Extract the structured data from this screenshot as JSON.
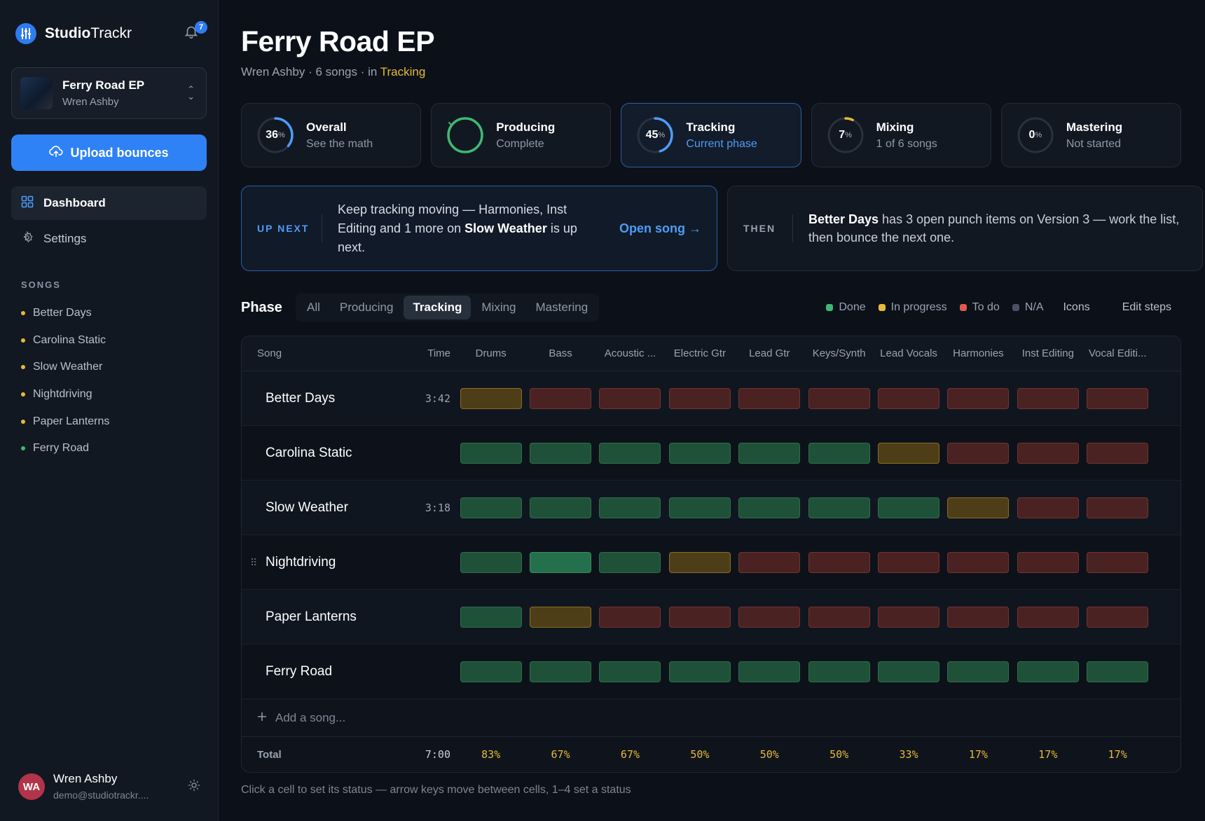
{
  "brand": {
    "bold": "Studio",
    "light": "Trackr",
    "notifications": "7"
  },
  "project": {
    "title": "Ferry Road EP",
    "artist": "Wren Ashby"
  },
  "sidebar": {
    "upload_label": "Upload bounces",
    "nav": [
      {
        "label": "Dashboard",
        "icon": "grid-icon",
        "active": true
      },
      {
        "label": "Settings",
        "icon": "gear-icon",
        "active": false
      }
    ],
    "songs_heading": "SONGS",
    "songs": [
      {
        "label": "Better Days",
        "dot": "#e8b93a"
      },
      {
        "label": "Carolina Static",
        "dot": "#e8b93a"
      },
      {
        "label": "Slow Weather",
        "dot": "#e8b93a"
      },
      {
        "label": "Nightdriving",
        "dot": "#e8b93a"
      },
      {
        "label": "Paper Lanterns",
        "dot": "#e8b93a"
      },
      {
        "label": "Ferry Road",
        "dot": "#3fb872"
      }
    ],
    "user": {
      "initials": "WA",
      "name": "Wren Ashby",
      "email": "demo@studiotrackr...."
    }
  },
  "header": {
    "title": "Ferry Road EP",
    "subtitle_prefix": "Wren Ashby · 6 songs · in ",
    "subtitle_phase": "Tracking"
  },
  "stats": [
    {
      "percent": 36,
      "label": "36",
      "unit": "%",
      "title": "Overall",
      "sub": "See the math",
      "color": "#4d9cf8",
      "check": false
    },
    {
      "percent": 100,
      "label": "",
      "unit": "",
      "title": "Producing",
      "sub": "Complete",
      "color": "#3fb872",
      "check": true
    },
    {
      "percent": 45,
      "label": "45",
      "unit": "%",
      "title": "Tracking",
      "sub": "Current phase",
      "color": "#4d9cf8",
      "check": false
    },
    {
      "percent": 7,
      "label": "7",
      "unit": "%",
      "title": "Mixing",
      "sub": "1 of 6 songs",
      "color": "#e8b93a",
      "check": false
    },
    {
      "percent": 0,
      "label": "0",
      "unit": "%",
      "title": "Mastering",
      "sub": "Not started",
      "color": "#4d9cf8",
      "check": false
    }
  ],
  "up_next": {
    "kicker": "UP NEXT",
    "text_a": "Keep tracking moving — Harmonies, Inst Editing and 1 more on ",
    "text_bold": "Slow Weather",
    "text_b": " is up next.",
    "action": "Open song →"
  },
  "then": {
    "kicker": "THEN",
    "text_bold": "Better Days",
    "text_rest": " has 3 open punch items on Version 3 — work the list, then bounce the next one."
  },
  "phase": {
    "heading": "Phase",
    "tabs": [
      {
        "label": "All"
      },
      {
        "label": "Producing"
      },
      {
        "label": "Tracking",
        "active": true
      },
      {
        "label": "Mixing"
      },
      {
        "label": "Mastering"
      }
    ],
    "legend": [
      {
        "label": "Done",
        "color": "#3fb872"
      },
      {
        "label": "In progress",
        "color": "#e8b93a"
      },
      {
        "label": "To do",
        "color": "#e05a4f"
      },
      {
        "label": "N/A",
        "color": "#4a5261"
      }
    ],
    "icons_label": "Icons",
    "edit_label": "Edit steps"
  },
  "table": {
    "headers": {
      "song": "Song",
      "time": "Time",
      "steps": [
        "Drums",
        "Bass",
        "Acoustic ...",
        "Electric Gtr",
        "Lead Gtr",
        "Keys/Synth",
        "Lead Vocals",
        "Harmonies",
        "Inst Editing",
        "Vocal Editi..."
      ]
    },
    "rows": [
      {
        "song": "Better Days",
        "time": "3:42",
        "status": [
          "prog",
          "todo",
          "todo",
          "todo",
          "todo",
          "todo",
          "todo",
          "todo",
          "todo",
          "todo"
        ]
      },
      {
        "song": "Carolina Static",
        "time": "",
        "status": [
          "done",
          "done",
          "done",
          "done",
          "done",
          "done",
          "prog",
          "todo",
          "todo",
          "todo"
        ]
      },
      {
        "song": "Slow Weather",
        "time": "3:18",
        "status": [
          "done",
          "done",
          "done",
          "done",
          "done",
          "done",
          "done",
          "prog",
          "todo",
          "todo"
        ]
      },
      {
        "song": "Nightdriving",
        "time": "",
        "status": [
          "done",
          "done-hl",
          "done",
          "prog",
          "todo",
          "todo",
          "todo",
          "todo",
          "todo",
          "todo"
        ],
        "grip": true
      },
      {
        "song": "Paper Lanterns",
        "time": "",
        "status": [
          "done",
          "prog",
          "todo",
          "todo",
          "todo",
          "todo",
          "todo",
          "todo",
          "todo",
          "todo"
        ]
      },
      {
        "song": "Ferry Road",
        "time": "",
        "status": [
          "done",
          "done",
          "done",
          "done",
          "done",
          "done",
          "done",
          "done",
          "done",
          "done"
        ]
      }
    ],
    "add_placeholder": "Add a song...",
    "total_label": "Total",
    "total_time": "7:00",
    "totals": [
      "83%",
      "67%",
      "67%",
      "50%",
      "50%",
      "50%",
      "33%",
      "17%",
      "17%",
      "17%"
    ]
  },
  "hint": "Click a cell to set its status — arrow keys move between cells, 1–4 set a status"
}
